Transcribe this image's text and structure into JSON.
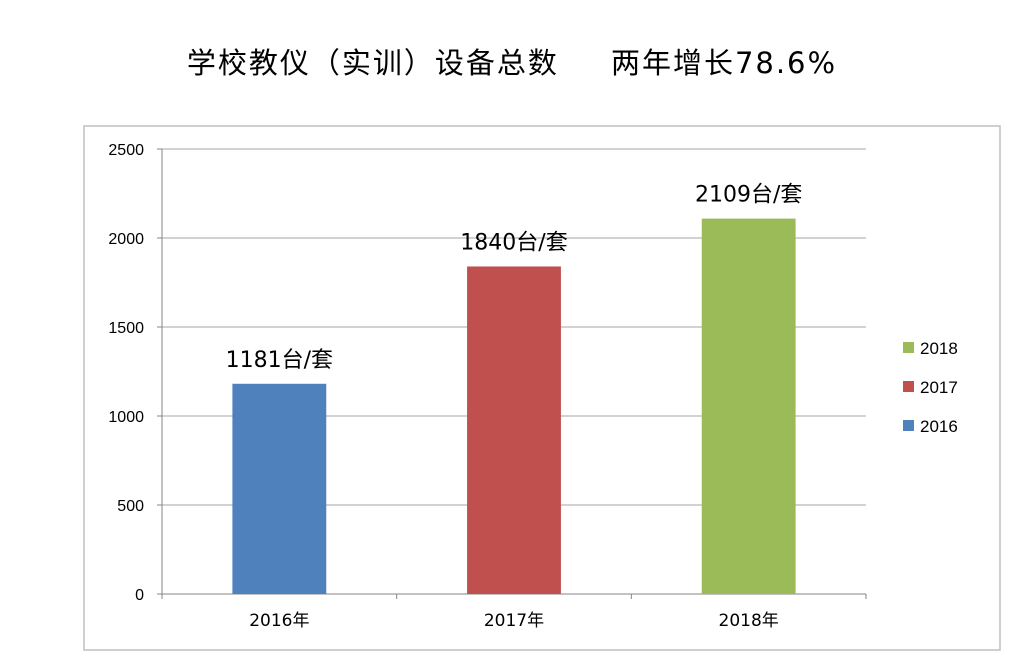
{
  "title": "学校教仪（实训）设备总数",
  "subtitle": "两年增长78.6%",
  "chart_data": {
    "type": "bar",
    "categories": [
      "2016年",
      "2017年",
      "2018年"
    ],
    "values": [
      1181,
      1840,
      2109
    ],
    "data_labels": [
      "1181台/套",
      "1840台/套",
      "2109台/套"
    ],
    "colors": [
      "#4f81bd",
      "#c0504d",
      "#9bbb59"
    ],
    "legend": [
      {
        "name": "2018",
        "color": "#9bbb59"
      },
      {
        "name": "2017",
        "color": "#c0504d"
      },
      {
        "name": "2016",
        "color": "#4f81bd"
      }
    ],
    "legend_position": "right",
    "ylim": [
      0,
      2500
    ],
    "yticks": [
      0,
      500,
      1000,
      1500,
      2000,
      2500
    ],
    "grid": true
  }
}
